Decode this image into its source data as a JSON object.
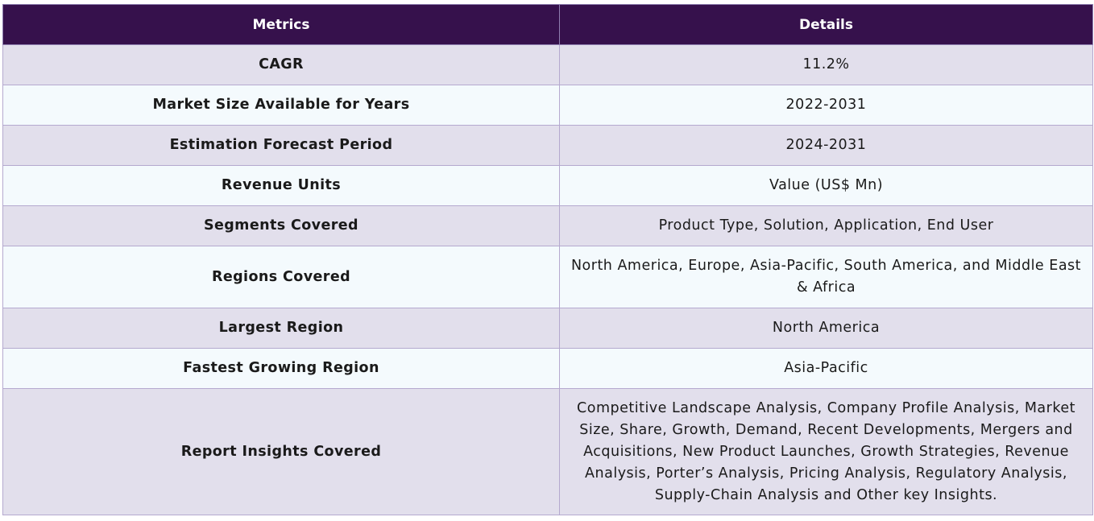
{
  "table": {
    "headers": {
      "metric": "Metrics",
      "detail": "Details"
    },
    "rows": [
      {
        "metric": "CAGR",
        "detail": "11.2%"
      },
      {
        "metric": "Market Size Available for Years",
        "detail": "2022-2031"
      },
      {
        "metric": "Estimation Forecast Period",
        "detail": "2024-2031"
      },
      {
        "metric": "Revenue Units",
        "detail": "Value (US$ Mn)"
      },
      {
        "metric": "Segments Covered",
        "detail": "Product Type, Solution, Application, End User"
      },
      {
        "metric": "Regions Covered",
        "detail": "North America, Europe, Asia-Pacific, South America, and Middle East & Africa"
      },
      {
        "metric": "Largest Region",
        "detail": "North America"
      },
      {
        "metric": "Fastest Growing Region",
        "detail": "Asia-Pacific"
      },
      {
        "metric": "Report Insights Covered",
        "detail": "Competitive Landscape Analysis, Company Profile Analysis, Market Size, Share, Growth, Demand, Recent Developments, Mergers and Acquisitions, New Product Launches, Growth Strategies, Revenue Analysis, Porter’s Analysis, Pricing Analysis, Regulatory Analysis, Supply-Chain Analysis and Other key Insights."
      }
    ]
  },
  "colors": {
    "header_bg": "#36114c",
    "row_odd_bg": "#e2dfec",
    "row_even_bg": "#f4fafd",
    "border": "#b5a9cf"
  }
}
